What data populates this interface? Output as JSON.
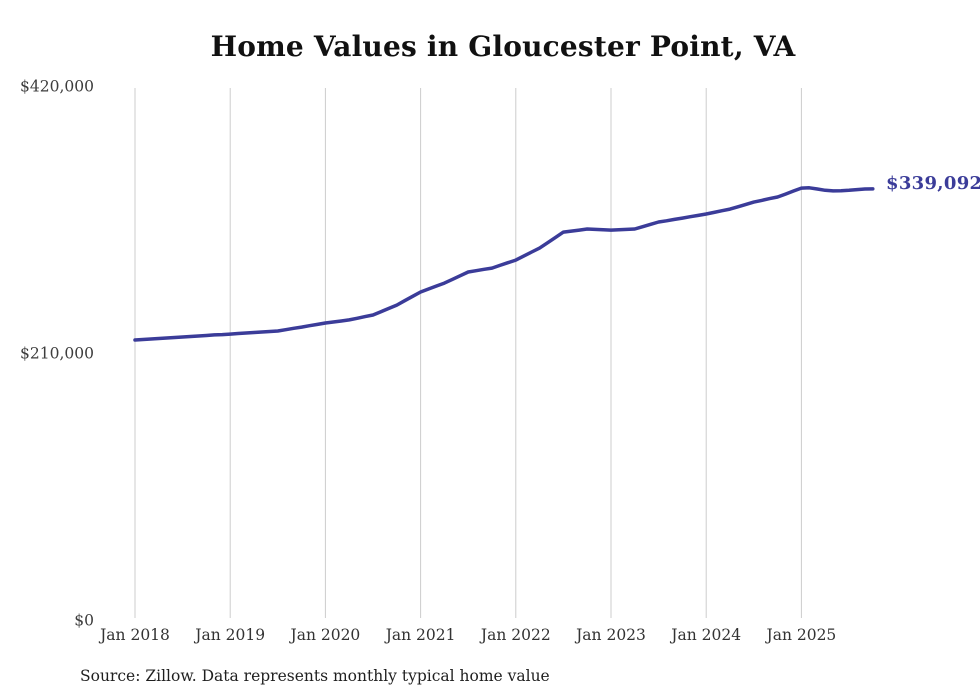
{
  "chart_data": {
    "type": "line",
    "title": "Home Values in Gloucester Point, VA",
    "series_name": "Monthly typical home value",
    "x_monthly_start": "2018-01",
    "x_monthly_end": "2025-10",
    "x_tick_labels": [
      "Jan 2018",
      "Jan 2019",
      "Jan 2020",
      "Jan 2021",
      "Jan 2022",
      "Jan 2023",
      "Jan 2024",
      "Jan 2025"
    ],
    "y_tick_labels": [
      "$0",
      "$210,000",
      "$420,000"
    ],
    "y_ticks": [
      0,
      210000,
      420000
    ],
    "ylim": [
      0,
      420000
    ],
    "grid": "vertical-only",
    "legend": "none",
    "line_color": "#3b3c99",
    "gridline_color": "#cccccc",
    "end_label": "$339,092",
    "end_value": 339092,
    "values": [
      220200,
      220600,
      221000,
      221400,
      221800,
      222200,
      222600,
      223000,
      223400,
      223800,
      224200,
      224500,
      224900,
      225300,
      225700,
      226100,
      226500,
      226900,
      227300,
      228300,
      229400,
      230400,
      231500,
      232500,
      233600,
      234400,
      235200,
      236000,
      237300,
      238600,
      239900,
      242500,
      245100,
      247700,
      251100,
      254600,
      258000,
      260300,
      262700,
      265000,
      267900,
      270800,
      273700,
      274700,
      275800,
      276800,
      278900,
      281000,
      283100,
      286200,
      289400,
      292500,
      296700,
      300900,
      305100,
      305900,
      306700,
      307500,
      307200,
      307000,
      306700,
      307000,
      307200,
      307500,
      309300,
      311200,
      313000,
      314000,
      315100,
      316100,
      317200,
      318200,
      319300,
      320600,
      321900,
      323200,
      325000,
      326900,
      328700,
      330000,
      331400,
      332700,
      335000,
      337400,
      339700,
      339900,
      339000,
      338000,
      337500,
      337600,
      338000,
      338500,
      339000,
      339092
    ]
  },
  "footer": {
    "source": "Source: Zillow. Data represents monthly typical home value"
  }
}
